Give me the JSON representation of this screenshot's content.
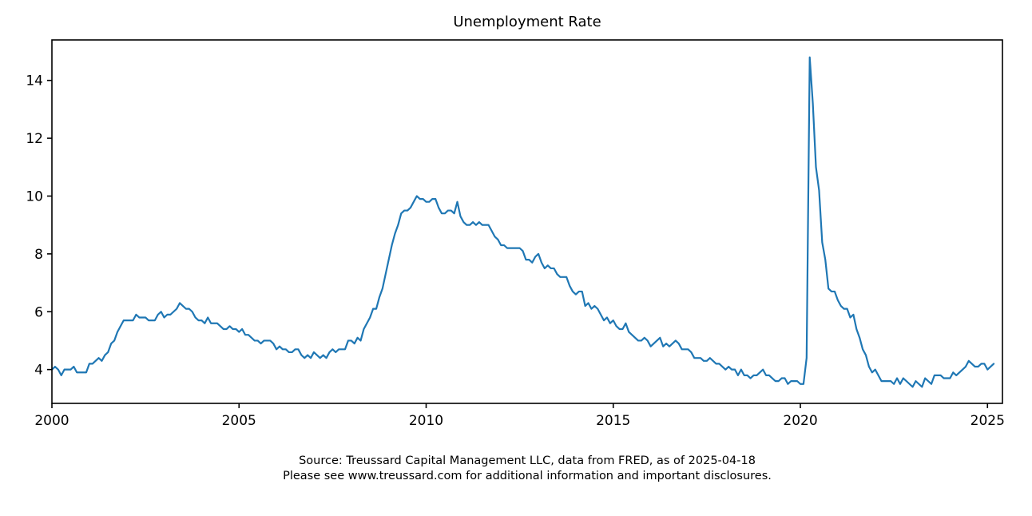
{
  "title": "Unemployment Rate",
  "source": {
    "line1": "Source: Treussard Capital Management LLC, data from FRED, as of 2025-04-18",
    "line2": "Please see www.treussard.com for additional information and important disclosures."
  },
  "chart_data": {
    "type": "line",
    "title": "Unemployment Rate",
    "series_name": "Unemployment Rate",
    "line_color": "#1f77b4",
    "axis_color": "#000000",
    "start_year": 2000,
    "frequency": "monthly",
    "values": [
      4.0,
      4.1,
      4.0,
      3.8,
      4.0,
      4.0,
      4.0,
      4.1,
      3.9,
      3.9,
      3.9,
      3.9,
      4.2,
      4.2,
      4.3,
      4.4,
      4.3,
      4.5,
      4.6,
      4.9,
      5.0,
      5.3,
      5.5,
      5.7,
      5.7,
      5.7,
      5.7,
      5.9,
      5.8,
      5.8,
      5.8,
      5.7,
      5.7,
      5.7,
      5.9,
      6.0,
      5.8,
      5.9,
      5.9,
      6.0,
      6.1,
      6.3,
      6.2,
      6.1,
      6.1,
      6.0,
      5.8,
      5.7,
      5.7,
      5.6,
      5.8,
      5.6,
      5.6,
      5.6,
      5.5,
      5.4,
      5.4,
      5.5,
      5.4,
      5.4,
      5.3,
      5.4,
      5.2,
      5.2,
      5.1,
      5.0,
      5.0,
      4.9,
      5.0,
      5.0,
      5.0,
      4.9,
      4.7,
      4.8,
      4.7,
      4.7,
      4.6,
      4.6,
      4.7,
      4.7,
      4.5,
      4.4,
      4.5,
      4.4,
      4.6,
      4.5,
      4.4,
      4.5,
      4.4,
      4.6,
      4.7,
      4.6,
      4.7,
      4.7,
      4.7,
      5.0,
      5.0,
      4.9,
      5.1,
      5.0,
      5.4,
      5.6,
      5.8,
      6.1,
      6.1,
      6.5,
      6.8,
      7.3,
      7.8,
      8.3,
      8.7,
      9.0,
      9.4,
      9.5,
      9.5,
      9.6,
      9.8,
      10.0,
      9.9,
      9.9,
      9.8,
      9.8,
      9.9,
      9.9,
      9.6,
      9.4,
      9.4,
      9.5,
      9.5,
      9.4,
      9.8,
      9.3,
      9.1,
      9.0,
      9.0,
      9.1,
      9.0,
      9.1,
      9.0,
      9.0,
      9.0,
      8.8,
      8.6,
      8.5,
      8.3,
      8.3,
      8.2,
      8.2,
      8.2,
      8.2,
      8.2,
      8.1,
      7.8,
      7.8,
      7.7,
      7.9,
      8.0,
      7.7,
      7.5,
      7.6,
      7.5,
      7.5,
      7.3,
      7.2,
      7.2,
      7.2,
      6.9,
      6.7,
      6.6,
      6.7,
      6.7,
      6.2,
      6.3,
      6.1,
      6.2,
      6.1,
      5.9,
      5.7,
      5.8,
      5.6,
      5.7,
      5.5,
      5.4,
      5.4,
      5.6,
      5.3,
      5.2,
      5.1,
      5.0,
      5.0,
      5.1,
      5.0,
      4.8,
      4.9,
      5.0,
      5.1,
      4.8,
      4.9,
      4.8,
      4.9,
      5.0,
      4.9,
      4.7,
      4.7,
      4.7,
      4.6,
      4.4,
      4.4,
      4.4,
      4.3,
      4.3,
      4.4,
      4.3,
      4.2,
      4.2,
      4.1,
      4.0,
      4.1,
      4.0,
      4.0,
      3.8,
      4.0,
      3.8,
      3.8,
      3.7,
      3.8,
      3.8,
      3.9,
      4.0,
      3.8,
      3.8,
      3.7,
      3.6,
      3.6,
      3.7,
      3.7,
      3.5,
      3.6,
      3.6,
      3.6,
      3.5,
      3.5,
      4.4,
      14.8,
      13.2,
      11.0,
      10.2,
      8.4,
      7.8,
      6.8,
      6.7,
      6.7,
      6.4,
      6.2,
      6.1,
      6.1,
      5.8,
      5.9,
      5.4,
      5.1,
      4.7,
      4.5,
      4.1,
      3.9,
      4.0,
      3.8,
      3.6,
      3.6,
      3.6,
      3.6,
      3.5,
      3.7,
      3.5,
      3.7,
      3.6,
      3.5,
      3.4,
      3.6,
      3.5,
      3.4,
      3.7,
      3.6,
      3.5,
      3.8,
      3.8,
      3.8,
      3.7,
      3.7,
      3.7,
      3.9,
      3.8,
      3.9,
      4.0,
      4.1,
      4.3,
      4.2,
      4.1,
      4.1,
      4.2,
      4.2,
      4.0,
      4.1,
      4.2
    ],
    "x_ticks": [
      2000,
      2005,
      2010,
      2015,
      2020,
      2025
    ],
    "y_ticks": [
      4,
      6,
      8,
      10,
      12,
      14
    ],
    "xlim": [
      2000,
      2025.4
    ],
    "ylim": [
      2.83,
      15.4
    ],
    "grid": false,
    "legend": "none"
  }
}
